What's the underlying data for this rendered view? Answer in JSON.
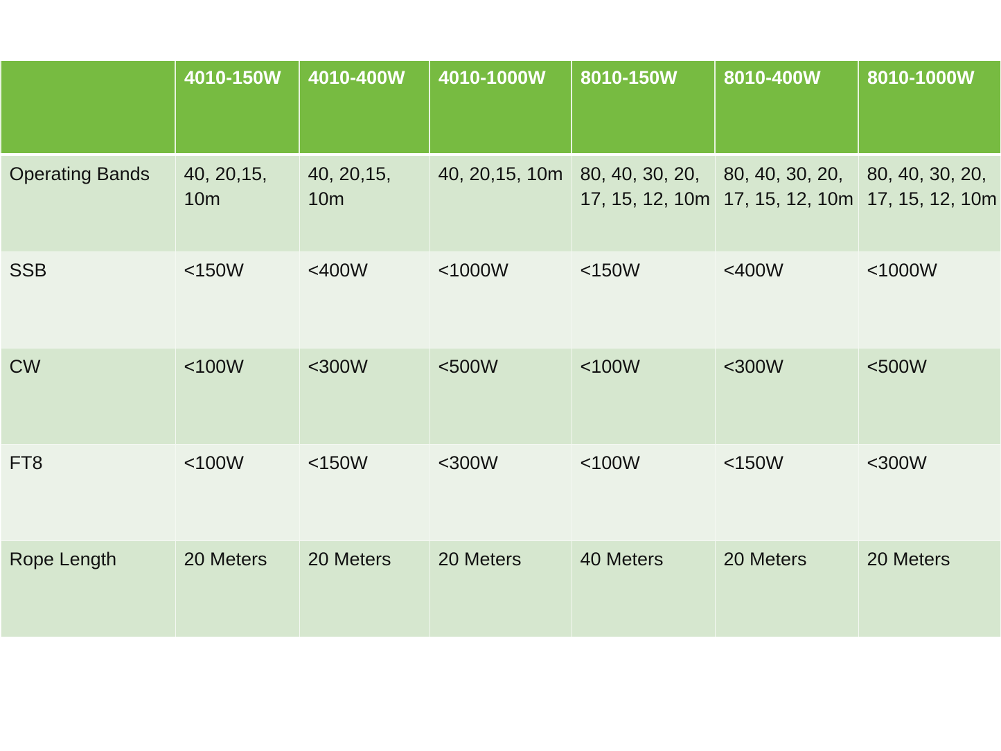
{
  "table": {
    "headers": [
      "",
      "4010-150W",
      "4010-400W",
      "4010-1000W",
      "8010-150W",
      "8010-400W",
      "8010-1000W"
    ],
    "rows": [
      [
        "Operating Bands",
        "40, 20,15, 10m",
        "40, 20,15, 10m",
        "40, 20,15, 10m",
        "80, 40, 30, 20, 17, 15, 12, 10m",
        "80, 40, 30, 20, 17, 15, 12, 10m",
        "80, 40, 30, 20, 17, 15, 12, 10m"
      ],
      [
        "SSB",
        "<150W",
        "<400W",
        "<1000W",
        "<150W",
        "<400W",
        "<1000W"
      ],
      [
        "CW",
        "<100W",
        "<300W",
        "<500W",
        "<100W",
        "<300W",
        "<500W"
      ],
      [
        "FT8",
        "<100W",
        "<150W",
        "<300W",
        "<100W",
        "<150W",
        "<300W"
      ],
      [
        "Rope Length",
        "20 Meters",
        "20 Meters",
        "20 Meters",
        "40 Meters",
        "20 Meters",
        "20 Meters"
      ]
    ]
  },
  "colors": {
    "header": "#77bb41",
    "row_dark": "#d6e7cf",
    "row_light": "#ebf2e8"
  }
}
